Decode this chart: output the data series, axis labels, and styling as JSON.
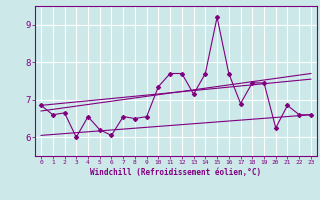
{
  "xlabel": "Windchill (Refroidissement éolien,°C)",
  "x_values": [
    0,
    1,
    2,
    3,
    4,
    5,
    6,
    7,
    8,
    9,
    10,
    11,
    12,
    13,
    14,
    15,
    16,
    17,
    18,
    19,
    20,
    21,
    22,
    23
  ],
  "scatter_y": [
    6.85,
    6.6,
    6.65,
    6.0,
    6.55,
    6.2,
    6.05,
    6.55,
    6.5,
    6.55,
    7.35,
    7.7,
    7.7,
    7.15,
    7.7,
    9.2,
    7.7,
    6.9,
    7.45,
    7.45,
    6.25,
    6.85,
    6.6,
    6.6
  ],
  "reg_line1_x": [
    0,
    23
  ],
  "reg_line1_y": [
    6.85,
    7.55
  ],
  "reg_line2_x": [
    0,
    23
  ],
  "reg_line2_y": [
    6.7,
    7.7
  ],
  "reg_line3_x": [
    0,
    23
  ],
  "reg_line3_y": [
    6.05,
    6.6
  ],
  "ylim": [
    5.5,
    9.5
  ],
  "xlim": [
    -0.5,
    23.5
  ],
  "yticks": [
    6,
    7,
    8,
    9
  ],
  "xticks": [
    0,
    1,
    2,
    3,
    4,
    5,
    6,
    7,
    8,
    9,
    10,
    11,
    12,
    13,
    14,
    15,
    16,
    17,
    18,
    19,
    20,
    21,
    22,
    23
  ],
  "line_color": "#800080",
  "scatter_color": "#800080",
  "reg_color": "#800080",
  "bg_color": "#cce8e8",
  "grid_color": "#ffffff",
  "axis_color": "#800080",
  "label_color": "#800080",
  "tick_color": "#800080"
}
